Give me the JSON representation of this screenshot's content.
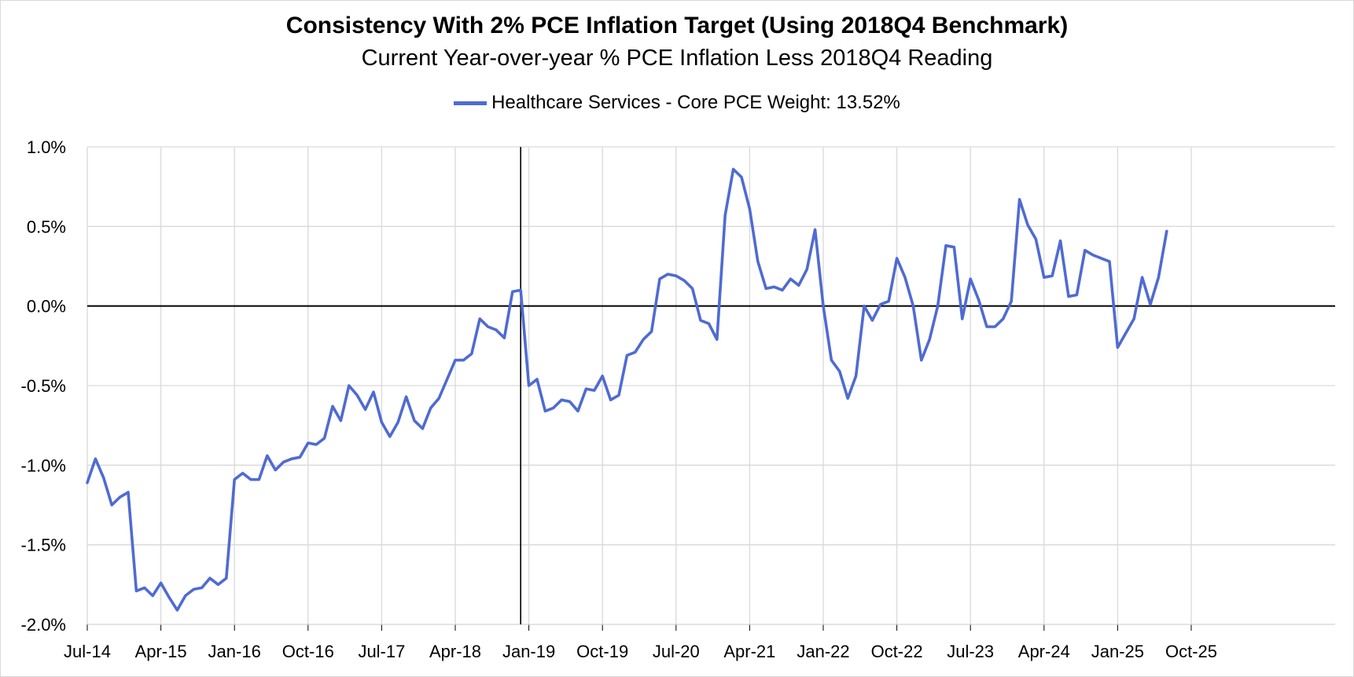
{
  "chart_data": {
    "type": "line",
    "title": "Consistency With 2% PCE Inflation Target (Using 2018Q4 Benchmark)",
    "subtitle": "Current Year-over-year % PCE Inflation Less 2018Q4 Reading",
    "xlabel": "",
    "ylabel": "",
    "ylim": [
      -2.0,
      1.0
    ],
    "y_ticks": [
      "1.0%",
      "0.5%",
      "0.0%",
      "-0.5%",
      "-1.0%",
      "-1.5%",
      "-2.0%"
    ],
    "x_ticks": [
      "Jul-14",
      "Apr-15",
      "Jan-16",
      "Oct-16",
      "Jul-17",
      "Apr-18",
      "Jan-19",
      "Oct-19",
      "Jul-20",
      "Apr-21",
      "Jan-22",
      "Oct-22",
      "Jul-23",
      "Apr-24",
      "Jan-25",
      "Oct-25"
    ],
    "grid": true,
    "legend_position": "top-center",
    "reference_line": "2018Q4 (Dec-18)",
    "series": [
      {
        "name": "Healthcare Services - Core PCE Weight: 13.52%",
        "color": "#4f6bd2",
        "start": "Jul-14",
        "frequency": "monthly",
        "values": [
          -1.11,
          -0.96,
          -1.08,
          -1.25,
          -1.2,
          -1.17,
          -1.79,
          -1.77,
          -1.82,
          -1.74,
          -1.83,
          -1.91,
          -1.82,
          -1.78,
          -1.77,
          -1.71,
          -1.75,
          -1.71,
          -1.09,
          -1.05,
          -1.09,
          -1.09,
          -0.94,
          -1.03,
          -0.98,
          -0.96,
          -0.95,
          -0.86,
          -0.87,
          -0.83,
          -0.63,
          -0.72,
          -0.5,
          -0.56,
          -0.65,
          -0.54,
          -0.73,
          -0.82,
          -0.73,
          -0.57,
          -0.72,
          -0.77,
          -0.64,
          -0.58,
          -0.46,
          -0.34,
          -0.34,
          -0.3,
          -0.08,
          -0.13,
          -0.15,
          -0.2,
          0.09,
          0.1,
          -0.5,
          -0.46,
          -0.66,
          -0.64,
          -0.59,
          -0.6,
          -0.66,
          -0.52,
          -0.53,
          -0.44,
          -0.59,
          -0.56,
          -0.31,
          -0.29,
          -0.21,
          -0.16,
          0.17,
          0.2,
          0.19,
          0.16,
          0.11,
          -0.09,
          -0.11,
          -0.21,
          0.57,
          0.86,
          0.81,
          0.61,
          0.28,
          0.11,
          0.12,
          0.1,
          0.17,
          0.13,
          0.23,
          0.48,
          0.0,
          -0.34,
          -0.41,
          -0.58,
          -0.44,
          0.0,
          -0.09,
          0.01,
          0.03,
          0.3,
          0.18,
          0.0,
          -0.34,
          -0.21,
          0.0,
          0.38,
          0.37,
          -0.08,
          0.17,
          0.04,
          -0.13,
          -0.13,
          -0.08,
          0.03,
          0.67,
          0.51,
          0.42,
          0.18,
          0.19,
          0.41,
          0.06,
          0.07,
          0.35,
          0.32,
          0.3,
          0.28,
          -0.26,
          -0.17,
          -0.08,
          0.18,
          0.01,
          0.18,
          0.47
        ]
      }
    ]
  }
}
